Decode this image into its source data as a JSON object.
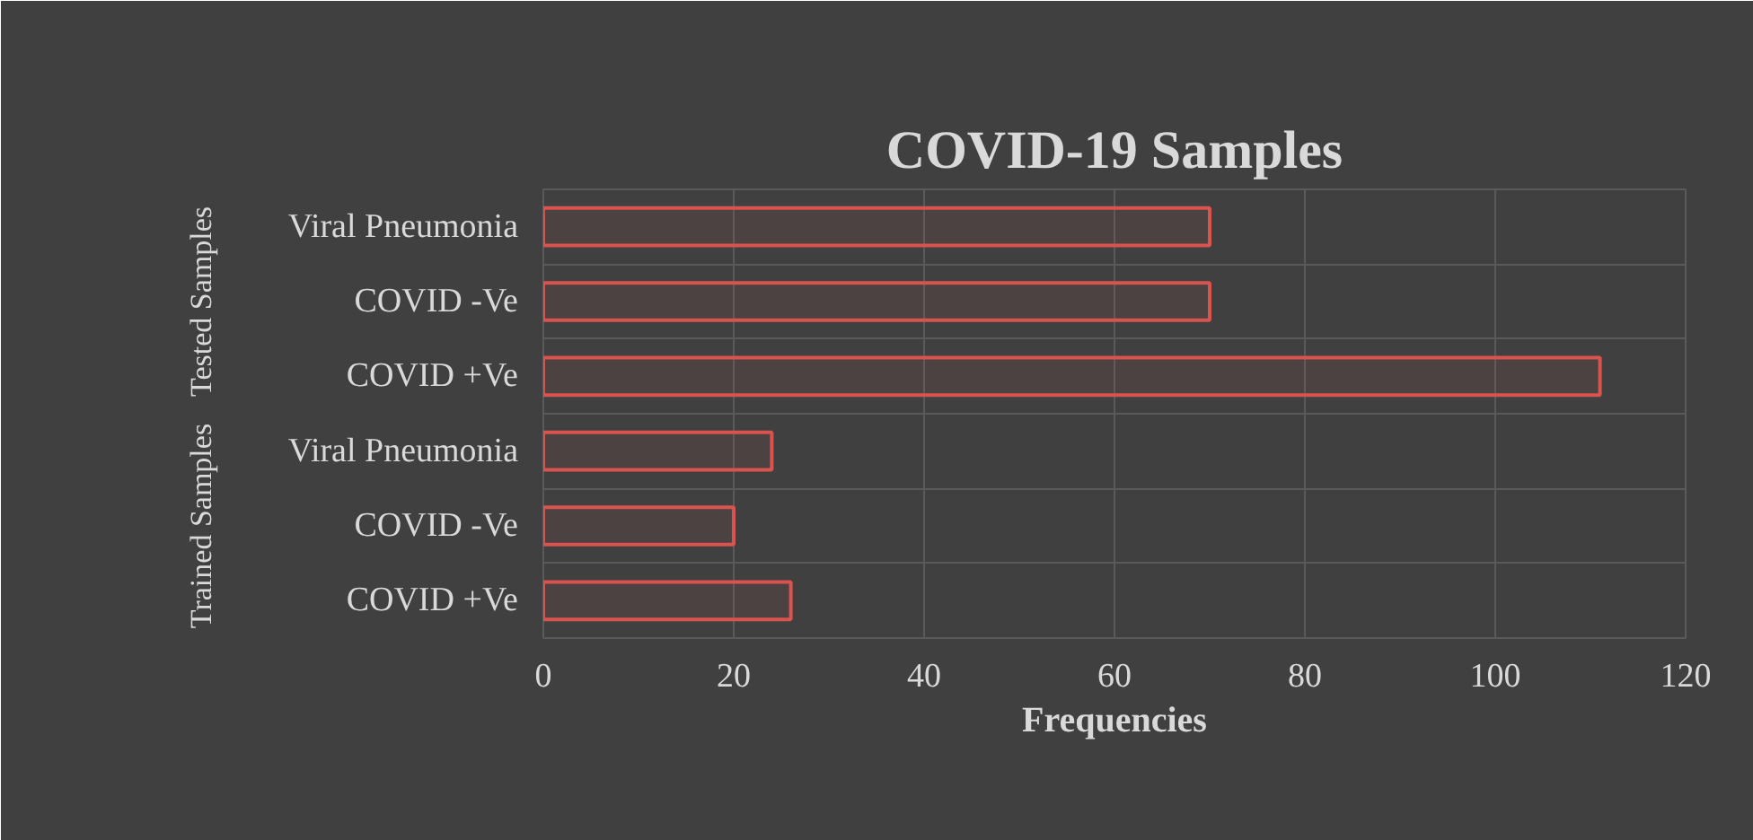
{
  "chart_data": {
    "type": "bar",
    "orientation": "horizontal",
    "title": "COVID-19 Samples",
    "xlabel": "Frequencies",
    "categories": [
      "Viral Pneumonia",
      "COVID -Ve",
      "COVID +Ve",
      "Viral Pneumonia",
      "COVID -Ve",
      "COVID +Ve"
    ],
    "values": [
      70,
      70,
      111,
      24,
      20,
      26
    ],
    "color": "#d9534f",
    "annotations": [
      "Tested Samples",
      "Trained Samples"
    ],
    "xlim": [
      0,
      120
    ],
    "xticks": [
      0,
      20,
      40,
      60,
      80,
      100,
      120
    ],
    "grid": true
  }
}
